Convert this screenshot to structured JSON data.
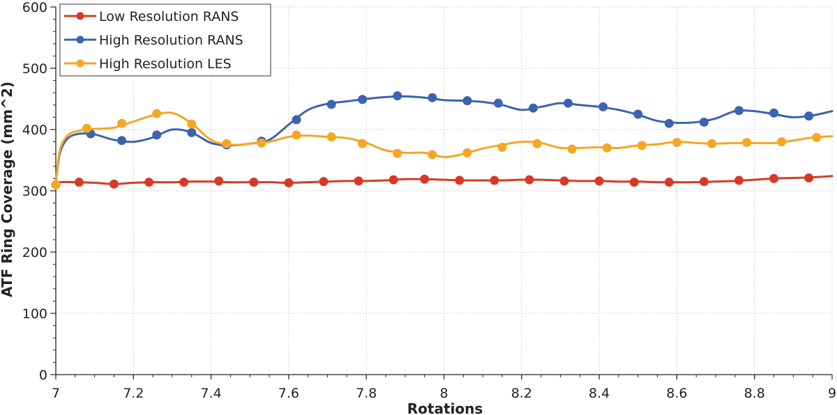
{
  "chart_data": {
    "type": "line",
    "title": "",
    "xlabel": "Rotations",
    "ylabel": "ATF Ring Coverage (mm^2)",
    "xlim": [
      7,
      9
    ],
    "ylim": [
      0,
      600
    ],
    "x_ticks": [
      7,
      7.2,
      7.4,
      7.6,
      7.8,
      8,
      8.2,
      8.4,
      8.6,
      8.8,
      9
    ],
    "x_tick_labels": [
      "7",
      "7.2",
      "7.4",
      "7.6",
      "7.8",
      "8",
      "8.2",
      "8.4",
      "8.6",
      "8.8",
      "9"
    ],
    "y_ticks": [
      0,
      100,
      200,
      300,
      400,
      500,
      600
    ],
    "y_tick_labels": [
      "0",
      "100",
      "200",
      "300",
      "400",
      "500",
      "600"
    ],
    "grid": true,
    "legend_position": "top-left",
    "series": [
      {
        "name": "Low Resolution RANS",
        "color": "#d63a27",
        "line": [
          [
            7.0,
            310
          ],
          [
            7.01,
            314
          ],
          [
            7.05,
            314
          ],
          [
            7.1,
            313
          ],
          [
            7.15,
            311
          ],
          [
            7.2,
            313
          ],
          [
            7.25,
            314
          ],
          [
            7.3,
            314
          ],
          [
            7.35,
            315
          ],
          [
            7.4,
            315
          ],
          [
            7.45,
            314
          ],
          [
            7.5,
            314
          ],
          [
            7.55,
            314
          ],
          [
            7.6,
            313
          ],
          [
            7.65,
            314
          ],
          [
            7.7,
            315
          ],
          [
            7.75,
            316
          ],
          [
            7.8,
            316
          ],
          [
            7.85,
            317
          ],
          [
            7.9,
            319
          ],
          [
            7.95,
            319
          ],
          [
            8.0,
            318
          ],
          [
            8.05,
            317
          ],
          [
            8.1,
            317
          ],
          [
            8.15,
            317
          ],
          [
            8.2,
            318
          ],
          [
            8.25,
            318
          ],
          [
            8.3,
            317
          ],
          [
            8.35,
            316
          ],
          [
            8.4,
            316
          ],
          [
            8.45,
            315
          ],
          [
            8.5,
            315
          ],
          [
            8.55,
            314
          ],
          [
            8.6,
            314
          ],
          [
            8.65,
            314
          ],
          [
            8.7,
            315
          ],
          [
            8.75,
            316
          ],
          [
            8.8,
            318
          ],
          [
            8.85,
            320
          ],
          [
            8.9,
            321
          ],
          [
            8.95,
            322
          ],
          [
            9.0,
            324
          ]
        ],
        "markers": [
          [
            7.0,
            310
          ],
          [
            7.06,
            314
          ],
          [
            7.15,
            311
          ],
          [
            7.24,
            314
          ],
          [
            7.33,
            314
          ],
          [
            7.42,
            316
          ],
          [
            7.51,
            314
          ],
          [
            7.6,
            313
          ],
          [
            7.69,
            315
          ],
          [
            7.78,
            316
          ],
          [
            7.87,
            318
          ],
          [
            7.95,
            319
          ],
          [
            8.04,
            317
          ],
          [
            8.13,
            317
          ],
          [
            8.22,
            318
          ],
          [
            8.31,
            316
          ],
          [
            8.4,
            316
          ],
          [
            8.49,
            314
          ],
          [
            8.58,
            314
          ],
          [
            8.67,
            315
          ],
          [
            8.76,
            317
          ],
          [
            8.85,
            320
          ],
          [
            8.94,
            321
          ]
        ]
      },
      {
        "name": "High Resolution RANS",
        "color": "#3a63b0",
        "line": [
          [
            7.0,
            310
          ],
          [
            7.01,
            360
          ],
          [
            7.03,
            385
          ],
          [
            7.06,
            393
          ],
          [
            7.1,
            392
          ],
          [
            7.15,
            383
          ],
          [
            7.2,
            380
          ],
          [
            7.25,
            387
          ],
          [
            7.3,
            400
          ],
          [
            7.35,
            395
          ],
          [
            7.4,
            378
          ],
          [
            7.45,
            374
          ],
          [
            7.5,
            377
          ],
          [
            7.55,
            383
          ],
          [
            7.6,
            408
          ],
          [
            7.65,
            432
          ],
          [
            7.7,
            442
          ],
          [
            7.75,
            446
          ],
          [
            7.8,
            450
          ],
          [
            7.85,
            453
          ],
          [
            7.9,
            454
          ],
          [
            7.95,
            452
          ],
          [
            8.0,
            448
          ],
          [
            8.05,
            447
          ],
          [
            8.1,
            445
          ],
          [
            8.15,
            440
          ],
          [
            8.2,
            432
          ],
          [
            8.25,
            437
          ],
          [
            8.3,
            443
          ],
          [
            8.35,
            440
          ],
          [
            8.4,
            437
          ],
          [
            8.45,
            432
          ],
          [
            8.5,
            424
          ],
          [
            8.55,
            414
          ],
          [
            8.6,
            411
          ],
          [
            8.65,
            412
          ],
          [
            8.7,
            418
          ],
          [
            8.75,
            430
          ],
          [
            8.8,
            430
          ],
          [
            8.85,
            425
          ],
          [
            8.9,
            420
          ],
          [
            8.95,
            423
          ],
          [
            9.0,
            430
          ]
        ],
        "markers": [
          [
            7.09,
            393
          ],
          [
            7.17,
            382
          ],
          [
            7.26,
            391
          ],
          [
            7.35,
            395
          ],
          [
            7.44,
            375
          ],
          [
            7.53,
            381
          ],
          [
            7.62,
            416
          ],
          [
            7.71,
            441
          ],
          [
            7.79,
            449
          ],
          [
            7.88,
            455
          ],
          [
            7.97,
            452
          ],
          [
            8.06,
            447
          ],
          [
            8.14,
            443
          ],
          [
            8.23,
            435
          ],
          [
            8.32,
            443
          ],
          [
            8.41,
            437
          ],
          [
            8.5,
            425
          ],
          [
            8.58,
            410
          ],
          [
            8.67,
            412
          ],
          [
            8.76,
            431
          ],
          [
            8.85,
            427
          ],
          [
            8.94,
            422
          ]
        ]
      },
      {
        "name": "High Resolution LES",
        "color": "#f5a623",
        "line": [
          [
            7.0,
            310
          ],
          [
            7.01,
            365
          ],
          [
            7.03,
            390
          ],
          [
            7.06,
            398
          ],
          [
            7.1,
            401
          ],
          [
            7.15,
            403
          ],
          [
            7.2,
            413
          ],
          [
            7.25,
            423
          ],
          [
            7.3,
            427
          ],
          [
            7.35,
            410
          ],
          [
            7.4,
            383
          ],
          [
            7.45,
            375
          ],
          [
            7.5,
            377
          ],
          [
            7.55,
            380
          ],
          [
            7.6,
            388
          ],
          [
            7.65,
            390
          ],
          [
            7.7,
            388
          ],
          [
            7.75,
            386
          ],
          [
            7.8,
            378
          ],
          [
            7.85,
            366
          ],
          [
            7.9,
            362
          ],
          [
            7.95,
            362
          ],
          [
            8.0,
            355
          ],
          [
            8.05,
            360
          ],
          [
            8.1,
            369
          ],
          [
            8.15,
            375
          ],
          [
            8.2,
            380
          ],
          [
            8.25,
            378
          ],
          [
            8.3,
            370
          ],
          [
            8.35,
            370
          ],
          [
            8.4,
            371
          ],
          [
            8.45,
            370
          ],
          [
            8.5,
            374
          ],
          [
            8.55,
            376
          ],
          [
            8.6,
            380
          ],
          [
            8.65,
            378
          ],
          [
            8.7,
            377
          ],
          [
            8.75,
            378
          ],
          [
            8.8,
            378
          ],
          [
            8.85,
            378
          ],
          [
            8.9,
            382
          ],
          [
            8.95,
            387
          ],
          [
            9.0,
            389
          ]
        ],
        "markers": [
          [
            7.0,
            310
          ],
          [
            7.08,
            402
          ],
          [
            7.17,
            410
          ],
          [
            7.26,
            426
          ],
          [
            7.35,
            409
          ],
          [
            7.44,
            377
          ],
          [
            7.53,
            378
          ],
          [
            7.62,
            391
          ],
          [
            7.71,
            388
          ],
          [
            7.79,
            377
          ],
          [
            7.88,
            361
          ],
          [
            7.97,
            359
          ],
          [
            8.06,
            362
          ],
          [
            8.15,
            371
          ],
          [
            8.24,
            377
          ],
          [
            8.33,
            368
          ],
          [
            8.42,
            370
          ],
          [
            8.51,
            374
          ],
          [
            8.6,
            379
          ],
          [
            8.69,
            377
          ],
          [
            8.78,
            379
          ],
          [
            8.87,
            380
          ],
          [
            8.96,
            387
          ]
        ]
      }
    ]
  }
}
